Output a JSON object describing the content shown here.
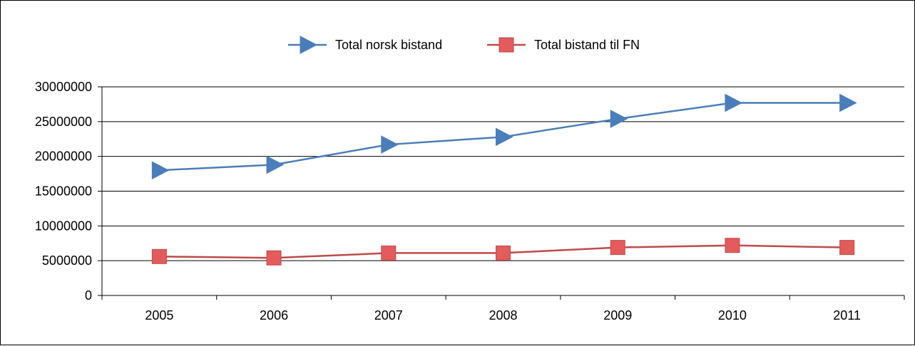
{
  "chart_data": {
    "type": "line",
    "title": "",
    "xlabel": "",
    "ylabel": "",
    "categories": [
      "2005",
      "2006",
      "2007",
      "2008",
      "2009",
      "2010",
      "2011"
    ],
    "ylim": [
      0,
      30000000
    ],
    "yticks": [
      0,
      5000000,
      10000000,
      15000000,
      20000000,
      25000000,
      30000000
    ],
    "ytick_labels": [
      "0",
      "5000000",
      "10000000",
      "15000000",
      "20000000",
      "25000000",
      "30000000"
    ],
    "grid": "horizontal",
    "legend_position": "top-center",
    "series": [
      {
        "name": "Total norsk bistand",
        "color": "#4a7ebb",
        "marker": "triangle-right",
        "values": [
          18000000,
          18800000,
          21700000,
          22800000,
          25400000,
          27700000,
          27700000
        ]
      },
      {
        "name": "Total bistand til FN",
        "color": "#be4b48",
        "marker_fill": "#e35b5b",
        "marker": "square",
        "values": [
          5600000,
          5400000,
          6100000,
          6100000,
          6900000,
          7200000,
          6900000
        ]
      }
    ]
  }
}
